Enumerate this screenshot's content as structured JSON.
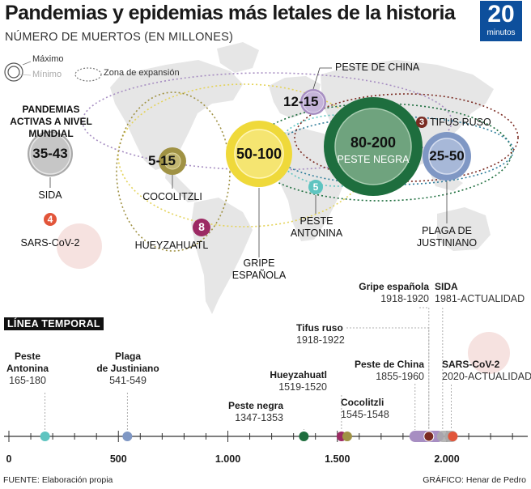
{
  "header": {
    "title": "Pandemias y epidemias más letales de la historia",
    "subtitle": "NÚMERO DE MUERTOS (EN MILLONES)",
    "logo_number": "20",
    "logo_text": "minutos"
  },
  "legend": {
    "max": "Máximo",
    "min": "Mínimo",
    "zone": "Zona de expansión"
  },
  "active_label": "PANDEMIAS ACTIVAS A NIVEL MUNDIAL",
  "colors": {
    "peste_negra": "#1e6e3e",
    "gripe": "#efd93a",
    "plaga": "#7f97c4",
    "peste_china": "#a78ec2",
    "sida": "#a9a9a9",
    "cocoliztli": "#a09244",
    "hueyzahuatl": "#9c2a64",
    "antonina": "#5ec4c0",
    "tifus": "#7a2b22",
    "sars": "#e2553a",
    "map": "#e6e6e6"
  },
  "chart_data": {
    "type": "bubble",
    "unit": "millones de muertos",
    "bubbles": [
      {
        "id": "peste_negra",
        "name": "PESTE NEGRA",
        "min": 80,
        "max": 200,
        "value_label": "80-200"
      },
      {
        "id": "gripe",
        "name": "GRIPE ESPAÑOLA",
        "min": 50,
        "max": 100,
        "value_label": "50-100"
      },
      {
        "id": "plaga",
        "name": "PLAGA DE JUSTINIANO",
        "min": 25,
        "max": 50,
        "value_label": "25-50"
      },
      {
        "id": "sida",
        "name": "SIDA",
        "min": 35,
        "max": 43,
        "value_label": "35-43"
      },
      {
        "id": "peste_china",
        "name": "PESTE DE CHINA",
        "min": 12,
        "max": 15,
        "value_label": "12-15"
      },
      {
        "id": "cocoliztli",
        "name": "COCOLITZLI",
        "min": 5,
        "max": 15,
        "value_label": "5-15"
      },
      {
        "id": "hueyzahuatl",
        "name": "HUEYZAHUATL",
        "min": 8,
        "max": 8,
        "value_label": "8"
      },
      {
        "id": "antonina",
        "name": "PESTE ANTONINA",
        "min": 5,
        "max": 5,
        "value_label": "5"
      },
      {
        "id": "tifus",
        "name": "TIFUS RUSO",
        "min": 3,
        "max": 3,
        "value_label": "3"
      },
      {
        "id": "sars",
        "name": "SARS-CoV-2",
        "min": 4,
        "max": 4,
        "value_label": "4"
      }
    ],
    "timeline": {
      "title": "LÍNEA TEMPORAL",
      "x_ticks": [
        {
          "v": 0,
          "label": "0"
        },
        {
          "v": 500,
          "label": "500"
        },
        {
          "v": 1000,
          "label": "1.000"
        },
        {
          "v": 1500,
          "label": "1.500"
        },
        {
          "v": 2000,
          "label": "2.000"
        }
      ],
      "xlim": [
        0,
        2000
      ],
      "events": [
        {
          "id": "antonina",
          "name": "Peste\nAntonina",
          "range": "165-180",
          "start": 165,
          "end": 180
        },
        {
          "id": "plaga",
          "name": "Plaga\nde Justiniano",
          "range": "541-549",
          "start": 541,
          "end": 549
        },
        {
          "id": "peste_negra",
          "name": "Peste negra",
          "range": "1347-1353",
          "start": 1347,
          "end": 1353
        },
        {
          "id": "hueyzahuatl",
          "name": "Hueyzahuatl",
          "range": "1519-1520",
          "start": 1519,
          "end": 1520
        },
        {
          "id": "cocoliztli",
          "name": "Cocolitzli",
          "range": "1545-1548",
          "start": 1545,
          "end": 1548
        },
        {
          "id": "peste_china",
          "name": "Peste de China",
          "range": "1855-1960",
          "start": 1855,
          "end": 1960
        },
        {
          "id": "tifus",
          "name": "Tifus ruso",
          "range": "1918-1922",
          "start": 1918,
          "end": 1922
        },
        {
          "id": "gripe",
          "name": "Gripe española",
          "range": "1918-1920",
          "start": 1918,
          "end": 1920
        },
        {
          "id": "sida",
          "name": "SIDA",
          "range": "1981-ACTUALIDAD",
          "start": 1981,
          "end": 2023
        },
        {
          "id": "sars",
          "name": "SARS-CoV-2",
          "range": "2020-ACTUALIDAD",
          "start": 2020,
          "end": 2023
        }
      ]
    }
  },
  "footer": {
    "source": "FUENTE: Elaboración propia",
    "credit": "GRÁFICO: Henar de Pedro"
  }
}
